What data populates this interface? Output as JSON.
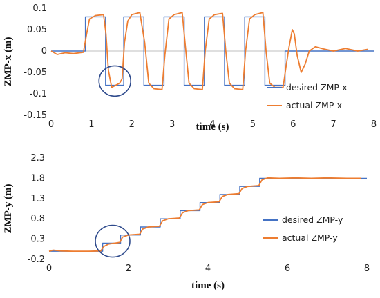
{
  "chart_data": [
    {
      "type": "line",
      "xlabel": "time (s)",
      "ylabel": "ZMP-x  (m)",
      "xlim": [
        0,
        8
      ],
      "ylim": [
        -0.15,
        0.1
      ],
      "x_ticks": [
        "0",
        "1",
        "2",
        "3",
        "4",
        "5",
        "6",
        "7",
        "8"
      ],
      "y_ticks": [
        "0.1",
        "0.05",
        "0",
        "-0.05",
        "-0.1",
        "-0.15"
      ],
      "legend_position": "bottom-right",
      "colors": {
        "desired": "#4472c4",
        "actual": "#ed7d31",
        "annotation": "#2e4a8c"
      },
      "series": [
        {
          "name": "desired ZMP-x",
          "points": [
            [
              0,
              0
            ],
            [
              0.85,
              0
            ],
            [
              0.85,
              0.08
            ],
            [
              1.35,
              0.08
            ],
            [
              1.35,
              -0.08
            ],
            [
              1.8,
              -0.08
            ],
            [
              1.8,
              0.08
            ],
            [
              2.3,
              0.08
            ],
            [
              2.3,
              -0.08
            ],
            [
              2.8,
              -0.08
            ],
            [
              2.8,
              0.08
            ],
            [
              3.3,
              0.08
            ],
            [
              3.3,
              -0.08
            ],
            [
              3.8,
              -0.08
            ],
            [
              3.8,
              0.08
            ],
            [
              4.3,
              0.08
            ],
            [
              4.3,
              -0.08
            ],
            [
              4.8,
              -0.08
            ],
            [
              4.8,
              0.08
            ],
            [
              5.3,
              0.08
            ],
            [
              5.3,
              -0.08
            ],
            [
              5.8,
              -0.08
            ],
            [
              5.8,
              0
            ],
            [
              8,
              0
            ]
          ]
        },
        {
          "name": "actual ZMP-x",
          "points": [
            [
              0,
              0
            ],
            [
              0.15,
              -0.008
            ],
            [
              0.35,
              -0.004
            ],
            [
              0.55,
              -0.006
            ],
            [
              0.8,
              -0.003
            ],
            [
              0.88,
              0.04
            ],
            [
              0.95,
              0.075
            ],
            [
              1.1,
              0.083
            ],
            [
              1.3,
              0.085
            ],
            [
              1.36,
              0.04
            ],
            [
              1.42,
              -0.045
            ],
            [
              1.5,
              -0.085
            ],
            [
              1.6,
              -0.08
            ],
            [
              1.7,
              -0.075
            ],
            [
              1.76,
              -0.065
            ],
            [
              1.82,
              0.02
            ],
            [
              1.9,
              0.07
            ],
            [
              2.0,
              0.085
            ],
            [
              2.2,
              0.09
            ],
            [
              2.32,
              0.02
            ],
            [
              2.42,
              -0.075
            ],
            [
              2.55,
              -0.088
            ],
            [
              2.75,
              -0.09
            ],
            [
              2.82,
              -0.01
            ],
            [
              2.92,
              0.075
            ],
            [
              3.05,
              0.085
            ],
            [
              3.25,
              0.09
            ],
            [
              3.33,
              0.01
            ],
            [
              3.42,
              -0.075
            ],
            [
              3.55,
              -0.088
            ],
            [
              3.75,
              -0.09
            ],
            [
              3.82,
              0.0
            ],
            [
              3.92,
              0.075
            ],
            [
              4.05,
              0.085
            ],
            [
              4.25,
              0.088
            ],
            [
              4.33,
              0.0
            ],
            [
              4.42,
              -0.075
            ],
            [
              4.55,
              -0.088
            ],
            [
              4.75,
              -0.09
            ],
            [
              4.82,
              0.0
            ],
            [
              4.92,
              0.075
            ],
            [
              5.05,
              0.085
            ],
            [
              5.25,
              0.09
            ],
            [
              5.33,
              0.0
            ],
            [
              5.42,
              -0.075
            ],
            [
              5.55,
              -0.085
            ],
            [
              5.75,
              -0.085
            ],
            [
              5.82,
              -0.04
            ],
            [
              5.9,
              0.01
            ],
            [
              5.98,
              0.05
            ],
            [
              6.03,
              0.04
            ],
            [
              6.1,
              -0.01
            ],
            [
              6.2,
              -0.05
            ],
            [
              6.3,
              -0.03
            ],
            [
              6.4,
              0.0
            ],
            [
              6.55,
              0.01
            ],
            [
              6.75,
              0.005
            ],
            [
              7.0,
              0.0
            ],
            [
              7.3,
              0.006
            ],
            [
              7.6,
              0.0
            ],
            [
              7.85,
              0.004
            ]
          ]
        }
      ]
    },
    {
      "type": "line",
      "xlabel": "time (s)",
      "ylabel": "ZMP-y  (m)",
      "xlim": [
        0,
        8
      ],
      "ylim": [
        -0.2,
        2.3
      ],
      "x_ticks": [
        "0",
        "2",
        "4",
        "6",
        "8"
      ],
      "y_ticks": [
        "2.3",
        "1.8",
        "1.3",
        "0.8",
        "0.3",
        "-0.2"
      ],
      "legend_position": "right",
      "colors": {
        "desired": "#4472c4",
        "actual": "#ed7d31",
        "annotation": "#2e4a8c"
      },
      "series": [
        {
          "name": "desired ZMP-y",
          "points": [
            [
              0,
              0
            ],
            [
              1.35,
              0
            ],
            [
              1.35,
              0.2
            ],
            [
              1.8,
              0.2
            ],
            [
              1.8,
              0.4
            ],
            [
              2.3,
              0.4
            ],
            [
              2.3,
              0.6
            ],
            [
              2.8,
              0.6
            ],
            [
              2.8,
              0.8
            ],
            [
              3.3,
              0.8
            ],
            [
              3.3,
              1.0
            ],
            [
              3.8,
              1.0
            ],
            [
              3.8,
              1.2
            ],
            [
              4.3,
              1.2
            ],
            [
              4.3,
              1.4
            ],
            [
              4.8,
              1.4
            ],
            [
              4.8,
              1.6
            ],
            [
              5.3,
              1.6
            ],
            [
              5.3,
              1.8
            ],
            [
              8,
              1.8
            ]
          ]
        },
        {
          "name": "actual ZMP-y",
          "points": [
            [
              0,
              0
            ],
            [
              0.1,
              0.03
            ],
            [
              0.3,
              0.01
            ],
            [
              0.6,
              0.0
            ],
            [
              1.0,
              0.0
            ],
            [
              1.3,
              0.01
            ],
            [
              1.38,
              0.12
            ],
            [
              1.5,
              0.18
            ],
            [
              1.65,
              0.2
            ],
            [
              1.78,
              0.22
            ],
            [
              1.85,
              0.35
            ],
            [
              2.0,
              0.4
            ],
            [
              2.28,
              0.42
            ],
            [
              2.36,
              0.55
            ],
            [
              2.5,
              0.6
            ],
            [
              2.78,
              0.62
            ],
            [
              2.86,
              0.75
            ],
            [
              3.0,
              0.8
            ],
            [
              3.28,
              0.82
            ],
            [
              3.36,
              0.95
            ],
            [
              3.5,
              1.0
            ],
            [
              3.78,
              1.02
            ],
            [
              3.86,
              1.15
            ],
            [
              4.0,
              1.2
            ],
            [
              4.28,
              1.22
            ],
            [
              4.36,
              1.35
            ],
            [
              4.5,
              1.4
            ],
            [
              4.78,
              1.42
            ],
            [
              4.86,
              1.55
            ],
            [
              5.0,
              1.6
            ],
            [
              5.28,
              1.62
            ],
            [
              5.36,
              1.76
            ],
            [
              5.5,
              1.81
            ],
            [
              5.8,
              1.8
            ],
            [
              6.2,
              1.81
            ],
            [
              6.6,
              1.8
            ],
            [
              7.0,
              1.81
            ],
            [
              7.5,
              1.8
            ],
            [
              7.85,
              1.8
            ]
          ]
        }
      ]
    }
  ]
}
